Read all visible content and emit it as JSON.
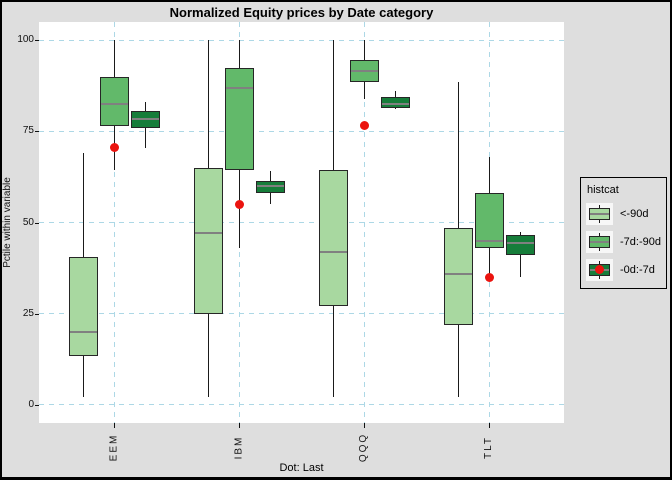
{
  "title": "Normalized Equity prices by Date category",
  "caption": "Dot: Last",
  "ylabel": "Pctile within variable",
  "colors": {
    "background": "#dedede",
    "panel": "#ffffff",
    "gridline": "#add8e6",
    "box_border": "#262626",
    "whisker": "#1a1a1a",
    "median": "#808080",
    "dot": "#eb140f"
  },
  "legend": {
    "title": "histcat",
    "items": [
      {
        "label": "<-90d",
        "color": "#a8d8a0",
        "dot": false
      },
      {
        "label": "-7d:-90d",
        "color": "#62b96a",
        "dot": false
      },
      {
        "label": "-0d:-7d",
        "color": "#167d3a",
        "dot": true
      }
    ]
  },
  "chart_data": {
    "type": "boxplot",
    "title": "Normalized Equity prices by Date category",
    "xlabel": "",
    "ylabel": "Pctile within variable",
    "categories": [
      "EEM",
      "IBM",
      "QQQ",
      "TLT"
    ],
    "yticks": [
      0,
      25,
      50,
      75,
      100
    ],
    "ylim": [
      -5,
      105
    ],
    "grid": "dashed",
    "legend_position": "right",
    "series": [
      {
        "name": "<-90d",
        "color": "#a8d8a0",
        "boxes": [
          {
            "category": "EEM",
            "low": 2,
            "q1": 13.5,
            "median": 20,
            "q3": 40.5,
            "high": 69
          },
          {
            "category": "IBM",
            "low": 2,
            "q1": 25,
            "median": 47,
            "q3": 65,
            "high": 100
          },
          {
            "category": "QQQ",
            "low": 2,
            "q1": 27,
            "median": 42,
            "q3": 64.5,
            "high": 100
          },
          {
            "category": "TLT",
            "low": 2,
            "q1": 22,
            "median": 36,
            "q3": 48.5,
            "high": 88.5
          }
        ]
      },
      {
        "name": "-7d:-90d",
        "color": "#62b96a",
        "boxes": [
          {
            "category": "EEM",
            "low": 64.5,
            "q1": 76.5,
            "median": 82.5,
            "q3": 90,
            "high": 100
          },
          {
            "category": "IBM",
            "low": 43,
            "q1": 64.5,
            "median": 87,
            "q3": 92.5,
            "high": 100
          },
          {
            "category": "QQQ",
            "low": 84,
            "q1": 88.5,
            "median": 91.5,
            "q3": 94.5,
            "high": 100
          },
          {
            "category": "TLT",
            "low": 35,
            "q1": 43,
            "median": 45,
            "q3": 58,
            "high": 68
          }
        ]
      },
      {
        "name": "-0d:-7d",
        "color": "#167d3a",
        "boxes": [
          {
            "category": "EEM",
            "low": 70.5,
            "q1": 76,
            "median": 78.5,
            "q3": 80.5,
            "high": 83
          },
          {
            "category": "IBM",
            "low": 55,
            "q1": 58,
            "median": 60,
            "q3": 61.5,
            "high": 64
          },
          {
            "category": "QQQ",
            "low": 81,
            "q1": 81.5,
            "median": 82.5,
            "q3": 84.5,
            "high": 86
          },
          {
            "category": "TLT",
            "low": 35,
            "q1": 41,
            "median": 44.5,
            "q3": 46.5,
            "high": 47.5
          }
        ]
      }
    ],
    "points": {
      "name": "-0d:-7d",
      "label": "Last",
      "color": "#eb140f",
      "values": [
        {
          "category": "EEM",
          "y": 70.5
        },
        {
          "category": "IBM",
          "y": 55
        },
        {
          "category": "QQQ",
          "y": 76.5
        },
        {
          "category": "TLT",
          "y": 35
        }
      ]
    }
  }
}
